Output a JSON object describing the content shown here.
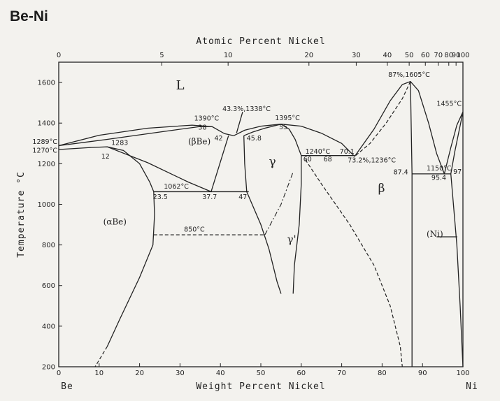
{
  "title": "Be-Ni",
  "chart_data": {
    "type": "phase-diagram",
    "xlabel": "Weight Percent Nickel",
    "x2label": "Atomic Percent Nickel",
    "ylabel": "Temperature °C",
    "xlim": [
      0,
      100
    ],
    "ylim": [
      200,
      1700
    ],
    "x_ticks": [
      0,
      10,
      20,
      30,
      40,
      50,
      60,
      70,
      80,
      90,
      100
    ],
    "x_tick_labels": [
      "0",
      "10",
      "20",
      "30",
      "40",
      "50",
      "60",
      "70",
      "80",
      "90",
      "100"
    ],
    "y_ticks": [
      200,
      400,
      600,
      800,
      1000,
      1200,
      1400,
      1600
    ],
    "y_tick_labels": [
      "200",
      "400",
      "600",
      "800",
      "1000",
      "1200",
      "1400",
      "1600"
    ],
    "top_ticks": [
      {
        "at_wt": 0,
        "label": "0"
      },
      {
        "at_wt": 25.5,
        "label": "5"
      },
      {
        "at_wt": 41.9,
        "label": "10"
      },
      {
        "at_wt": 61.9,
        "label": "20"
      },
      {
        "at_wt": 73.6,
        "label": "30"
      },
      {
        "at_wt": 81.3,
        "label": "40"
      },
      {
        "at_wt": 86.7,
        "label": "50"
      },
      {
        "at_wt": 90.7,
        "label": "60"
      },
      {
        "at_wt": 93.9,
        "label": "70"
      },
      {
        "at_wt": 96.5,
        "label": "80"
      },
      {
        "at_wt": 98.3,
        "label": "90"
      },
      {
        "at_wt": 100,
        "label": "100"
      }
    ],
    "element_labels": {
      "left": "Be",
      "right": "Ni"
    },
    "phase_labels": [
      {
        "text": "L",
        "x": 29,
        "y": 1565,
        "size": 18
      },
      {
        "text": "(βBe)",
        "x": 32,
        "y": 1295,
        "size": 12
      },
      {
        "text": "γ",
        "x": 52,
        "y": 1190,
        "size": 17
      },
      {
        "text": "γ'",
        "x": 56.5,
        "y": 810,
        "size": 15
      },
      {
        "text": "β",
        "x": 79,
        "y": 1060,
        "size": 17
      },
      {
        "text": "(αBe)",
        "x": 11,
        "y": 900,
        "size": 12
      },
      {
        "text": "(Ni)",
        "x": 91,
        "y": 840,
        "size": 12
      }
    ],
    "annotations": [
      {
        "text": "1289°C",
        "x": -6.5,
        "y": 1297
      },
      {
        "text": "1270°C",
        "x": -6.5,
        "y": 1255
      },
      {
        "text": "1283",
        "x": 13,
        "y": 1292
      },
      {
        "text": "12",
        "x": 10.5,
        "y": 1225
      },
      {
        "text": "1390°C",
        "x": 33.5,
        "y": 1412
      },
      {
        "text": "38",
        "x": 34.5,
        "y": 1368
      },
      {
        "text": "43.3%,1338°C",
        "x": 40.5,
        "y": 1460
      },
      {
        "text": "42",
        "x": 38.5,
        "y": 1314
      },
      {
        "text": "45.8",
        "x": 46.5,
        "y": 1314
      },
      {
        "text": "1395°C",
        "x": 53.5,
        "y": 1414
      },
      {
        "text": "55",
        "x": 54.5,
        "y": 1370
      },
      {
        "text": "1240°C",
        "x": 61,
        "y": 1250
      },
      {
        "text": "70.1",
        "x": 69.5,
        "y": 1250
      },
      {
        "text": "60",
        "x": 60.5,
        "y": 1212
      },
      {
        "text": "68",
        "x": 65.5,
        "y": 1212
      },
      {
        "text": "73.2%,1236°C",
        "x": 71.5,
        "y": 1206
      },
      {
        "text": "87%,1605°C",
        "x": 81.5,
        "y": 1628
      },
      {
        "text": "1455°C",
        "x": 93.5,
        "y": 1485
      },
      {
        "text": "1150°C",
        "x": 91,
        "y": 1166
      },
      {
        "text": "87.4",
        "x": 82.8,
        "y": 1148
      },
      {
        "text": "95.4",
        "x": 92.2,
        "y": 1120
      },
      {
        "text": "97",
        "x": 97.6,
        "y": 1150
      },
      {
        "text": "1062°C",
        "x": 26,
        "y": 1077
      },
      {
        "text": "23.5",
        "x": 23.3,
        "y": 1025
      },
      {
        "text": "37.7",
        "x": 35.5,
        "y": 1025
      },
      {
        "text": "47",
        "x": 44.5,
        "y": 1025
      },
      {
        "text": "850°C",
        "x": 31,
        "y": 866
      }
    ]
  }
}
